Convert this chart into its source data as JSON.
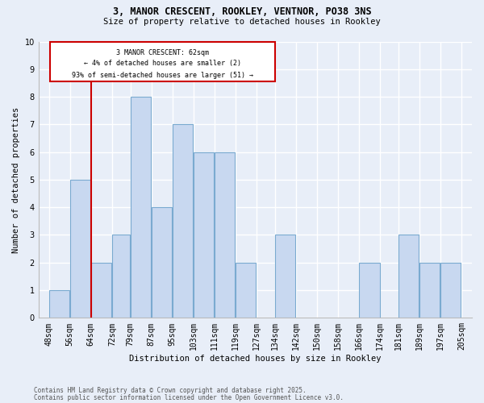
{
  "title1": "3, MANOR CRESCENT, ROOKLEY, VENTNOR, PO38 3NS",
  "title2": "Size of property relative to detached houses in Rookley",
  "xlabel": "Distribution of detached houses by size in Rookley",
  "ylabel": "Number of detached properties",
  "footnote1": "Contains HM Land Registry data © Crown copyright and database right 2025.",
  "footnote2": "Contains public sector information licensed under the Open Government Licence v3.0.",
  "annotation_line1": "3 MANOR CRESCENT: 62sqm",
  "annotation_line2": "← 4% of detached houses are smaller (2)",
  "annotation_line3": "93% of semi-detached houses are larger (51) →",
  "bar_left_edges": [
    48,
    56,
    64,
    72,
    79,
    87,
    95,
    103,
    111,
    119,
    127,
    134,
    142,
    150,
    158,
    166,
    174,
    181,
    189,
    197
  ],
  "bar_widths": [
    8,
    8,
    8,
    7,
    8,
    8,
    8,
    8,
    8,
    8,
    7,
    8,
    8,
    8,
    8,
    8,
    7,
    8,
    8,
    8
  ],
  "bar_heights": [
    1,
    5,
    2,
    3,
    8,
    4,
    7,
    6,
    6,
    2,
    0,
    3,
    0,
    0,
    0,
    2,
    0,
    3,
    2,
    2
  ],
  "tick_labels": [
    "48sqm",
    "56sqm",
    "64sqm",
    "72sqm",
    "79sqm",
    "87sqm",
    "95sqm",
    "103sqm",
    "111sqm",
    "119sqm",
    "127sqm",
    "134sqm",
    "142sqm",
    "150sqm",
    "158sqm",
    "166sqm",
    "174sqm",
    "181sqm",
    "189sqm",
    "197sqm",
    "205sqm"
  ],
  "tick_positions": [
    48,
    56,
    64,
    72,
    79,
    87,
    95,
    103,
    111,
    119,
    127,
    134,
    142,
    150,
    158,
    166,
    174,
    181,
    189,
    197,
    205
  ],
  "bar_color": "#c8d8f0",
  "bar_edge_color": "#7aaad0",
  "redline_x": 64,
  "ylim": [
    0,
    10
  ],
  "xlim": [
    44,
    209
  ],
  "background_color": "#e8eef8",
  "grid_color": "#ffffff",
  "annotation_box_color": "#ffffff",
  "annotation_box_edge": "#cc0000",
  "redline_color": "#cc0000"
}
